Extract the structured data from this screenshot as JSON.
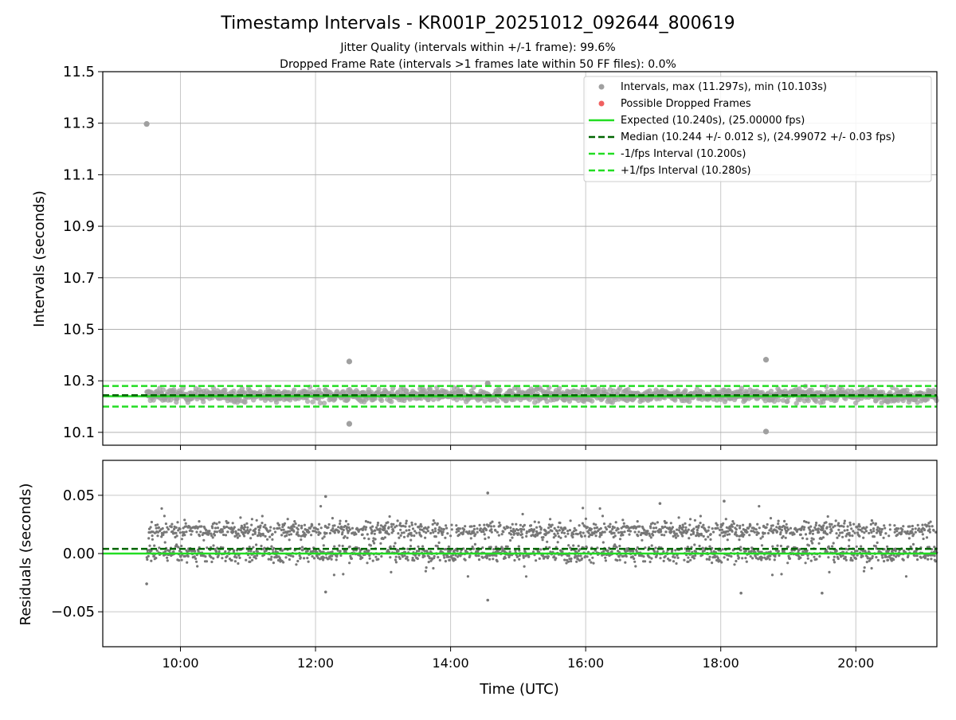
{
  "chart_data": [
    {
      "type": "scatter",
      "title": "Timestamp Intervals - KR001P_20251012_092644_800619",
      "subtitle_lines": [
        "Jitter Quality (intervals within +/-1 frame): 99.6%",
        "Dropped Frame Rate (intervals >1 frames late within 50 FF files): 0.0%"
      ],
      "ylabel": "Intervals (seconds)",
      "ylim": [
        10.05,
        11.5
      ],
      "xlim_hours": [
        8.85,
        21.2
      ],
      "yticks": [
        10.1,
        10.3,
        10.5,
        10.7,
        10.9,
        11.1,
        11.3,
        11.5
      ],
      "ytick_labels": [
        "10.1",
        "10.3",
        "10.5",
        "10.7",
        "10.9",
        "11.1",
        "11.3",
        "11.5"
      ],
      "grid": true,
      "legend_position": "top-right",
      "legend": [
        "Intervals, max (11.297s), min (10.103s)",
        "Possible Dropped Frames",
        "Expected (10.240s), (25.00000 fps)",
        "Median (10.244 +/- 0.012 s), (24.99072 +/- 0.03 fps)",
        "-1/fps Interval (10.200s)",
        "+1/fps Interval (10.280s)"
      ],
      "lines": {
        "expected": 10.24,
        "median": 10.244,
        "minus_fps": 10.2,
        "plus_fps": 10.28
      },
      "series_colors": {
        "intervals": "#a0a0a0",
        "dropped": "#f06060",
        "expected": "#22dd22",
        "median": "#006400",
        "fps_band": "#22dd22"
      },
      "data_range_hours": [
        9.5,
        21.2
      ],
      "band_center_seconds": 10.244,
      "band_halfwidth_seconds": 0.03,
      "outliers": [
        {
          "x": 9.5,
          "y": 11.297
        },
        {
          "x": 12.5,
          "y": 10.375
        },
        {
          "x": 12.5,
          "y": 10.133
        },
        {
          "x": 18.67,
          "y": 10.382
        },
        {
          "x": 18.67,
          "y": 10.103
        },
        {
          "x": 14.55,
          "y": 10.29
        }
      ]
    },
    {
      "type": "scatter",
      "ylabel": "Residuals (seconds)",
      "xlabel": "Time (UTC)",
      "ylim": [
        -0.08,
        0.08
      ],
      "xlim_hours": [
        8.85,
        21.2
      ],
      "yticks": [
        -0.05,
        0.0,
        0.05
      ],
      "ytick_labels": [
        "−0.05",
        "0.00",
        "0.05"
      ],
      "xticks_hours": [
        10,
        12,
        14,
        16,
        18,
        20
      ],
      "xtick_labels": [
        "10:00",
        "12:00",
        "14:00",
        "16:00",
        "18:00",
        "20:00"
      ],
      "grid": true,
      "lines": {
        "zero": 0.0,
        "median_offset": 0.004
      },
      "series_colors": {
        "residuals": "#777777",
        "zero": "#22dd22",
        "median": "#006400"
      },
      "data_range_hours": [
        9.5,
        21.2
      ],
      "residual_clusters": [
        0.0,
        0.02
      ],
      "outliers": [
        {
          "x": 14.55,
          "y": 0.052
        },
        {
          "x": 14.55,
          "y": -0.04
        },
        {
          "x": 12.15,
          "y": 0.049
        },
        {
          "x": 12.15,
          "y": -0.033
        },
        {
          "x": 18.3,
          "y": -0.034
        },
        {
          "x": 19.5,
          "y": -0.034
        },
        {
          "x": 9.5,
          "y": -0.026
        },
        {
          "x": 18.05,
          "y": 0.045
        },
        {
          "x": 17.1,
          "y": 0.043
        }
      ]
    }
  ]
}
